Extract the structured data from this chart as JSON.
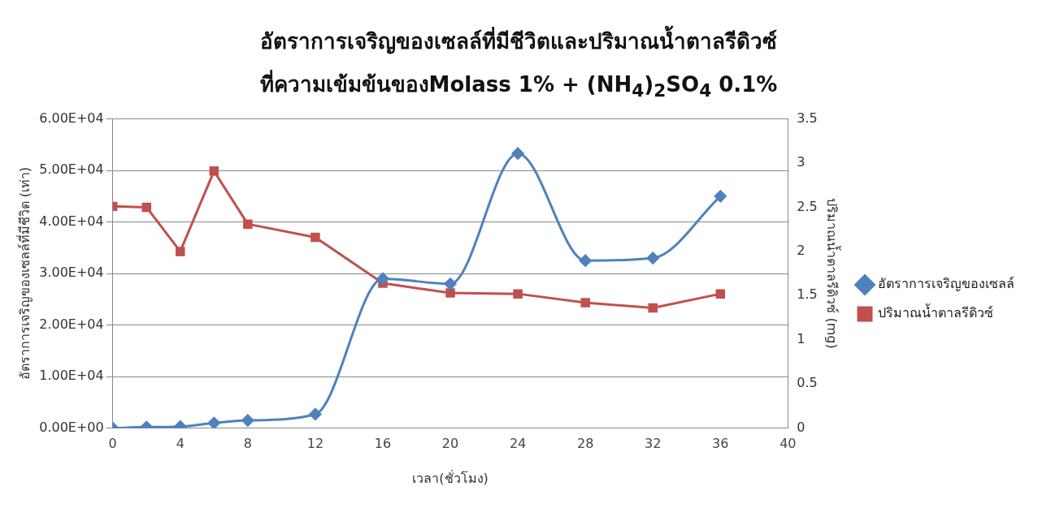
{
  "chart_data": {
    "type": "line",
    "title": "อัตราการเจริญของเซลล์ที่มีชีวิตและปริมาณน้ำตาลรีดิวซ์",
    "subtitle": "ที่ความเข้มข้นของMolass 1% + (NH$_{4}$)$_{2}$SO$_{4}$ 0.1%",
    "xlabel": "เวลา(ชั่วโมง)",
    "ylabel": "อัตราการเจริญของเซลล์ที่มีชีวิต (เท่า)",
    "y2label": "ปริมาณน้ำตาลรีดิวซ์ (mg)",
    "x": [
      0,
      2,
      4,
      6,
      8,
      12,
      16,
      20,
      24,
      28,
      32,
      36
    ],
    "series": [
      {
        "name": "อัตราการเจริญของเซลล์",
        "color": "#4f81bd",
        "marker": "diamond",
        "values": [
          0,
          200,
          300,
          1000,
          1500,
          2700,
          29000,
          28000,
          53300,
          32500,
          33000,
          45000
        ]
      },
      {
        "name": "ปริมาณน้ำตาลรีดิวซ์",
        "color": "#c0504d",
        "marker": "square",
        "axis": "y2",
        "values": [
          2.51,
          2.5,
          2.0,
          2.91,
          2.31,
          2.16,
          1.64,
          1.53,
          1.52,
          1.42,
          1.36,
          1.52
        ]
      }
    ],
    "xlim": [
      0,
      40
    ],
    "xticks": [
      0,
      4,
      8,
      12,
      16,
      20,
      24,
      28,
      32,
      36,
      40
    ],
    "ylim": [
      0,
      60000
    ],
    "yticks": [
      {
        "value": 0,
        "label": "0.00E+00"
      },
      {
        "value": 10000,
        "label": "1.00E+04"
      },
      {
        "value": 20000,
        "label": "2.00E+04"
      },
      {
        "value": 30000,
        "label": "3.00E+04"
      },
      {
        "value": 40000,
        "label": "4.00E+04"
      },
      {
        "value": 50000,
        "label": "5.00E+04"
      },
      {
        "value": 60000,
        "label": "6.00E+04"
      }
    ],
    "y2lim": [
      0,
      3.5
    ],
    "y2ticks": [
      0,
      0.5,
      1,
      1.5,
      2,
      2.5,
      3,
      3.5
    ],
    "grid": "y",
    "legend": "right"
  }
}
